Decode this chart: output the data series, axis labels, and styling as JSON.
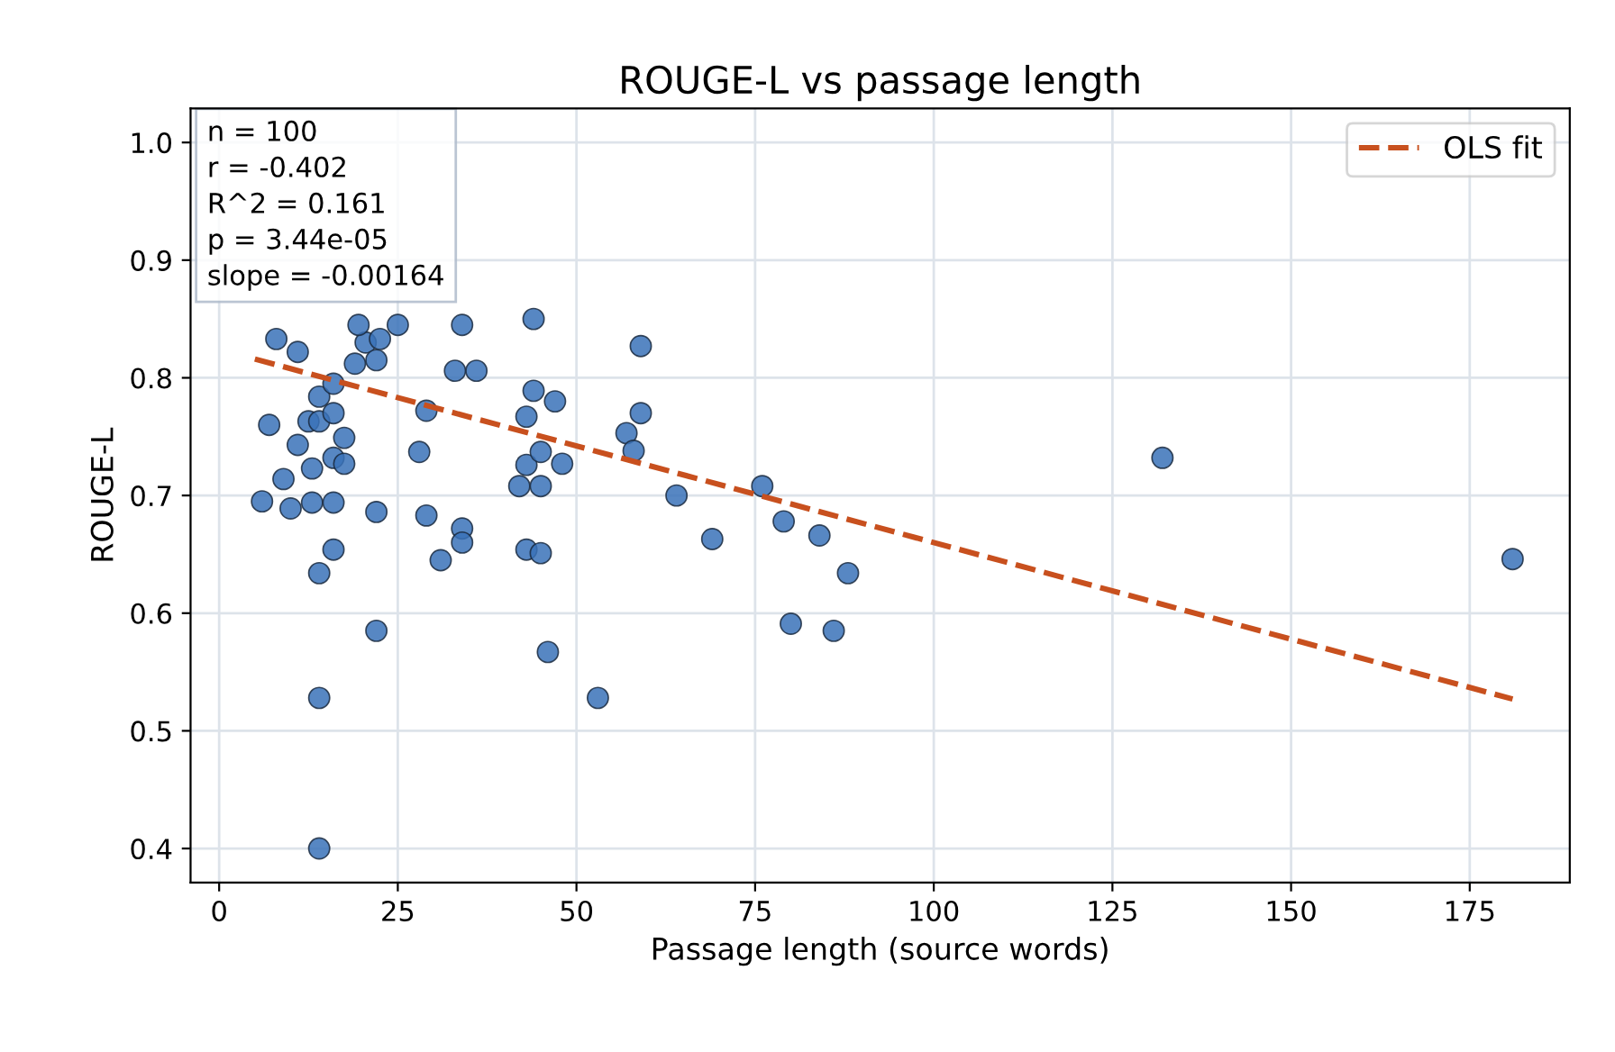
{
  "chart_data": {
    "type": "scatter",
    "title": "ROUGE-L vs passage length",
    "xlabel": "Passage length (source words)",
    "ylabel": "ROUGE-L",
    "annotations": [
      "n = 100\nr = -0.402\nR^2 = 0.161\np = 3.44e-05\nslope = -0.00164"
    ],
    "series": [
      {
        "color": "#3a72b8",
        "marker": "circle",
        "x": [
          6,
          7,
          9,
          10,
          8,
          11,
          11,
          12.5,
          13,
          13,
          14,
          14,
          14,
          14,
          14,
          16,
          16,
          16,
          16,
          17.5,
          17.5,
          16,
          19,
          20.5,
          22,
          22,
          22,
          19.5,
          22.5,
          25,
          28,
          29,
          29,
          31,
          33,
          34,
          34,
          34,
          36,
          42,
          43,
          43,
          43,
          44,
          44,
          45,
          45,
          45,
          46,
          47,
          48,
          53,
          57,
          58,
          59,
          59,
          64,
          69,
          76,
          79,
          80,
          84,
          86,
          88,
          132,
          181
        ],
        "values": [
          0.695,
          0.76,
          0.714,
          0.689,
          0.833,
          0.822,
          0.743,
          0.763,
          0.723,
          0.694,
          0.634,
          0.528,
          0.4,
          0.763,
          0.784,
          0.77,
          0.732,
          0.694,
          0.654,
          0.749,
          0.727,
          0.795,
          0.812,
          0.83,
          0.815,
          0.686,
          0.585,
          0.845,
          0.833,
          0.845,
          0.737,
          0.772,
          0.683,
          0.645,
          0.806,
          0.845,
          0.672,
          0.66,
          0.806,
          0.708,
          0.726,
          0.767,
          0.654,
          0.85,
          0.789,
          0.651,
          0.737,
          0.708,
          0.567,
          0.78,
          0.727,
          0.528,
          0.753,
          0.738,
          0.77,
          0.827,
          0.7,
          0.663,
          0.708,
          0.678,
          0.591,
          0.666,
          0.585,
          0.634,
          0.732,
          0.646
        ]
      },
      {
        "type": "line",
        "name": "OLS fit",
        "color": "#c8501e",
        "line_style": "dashed",
        "marker": "none",
        "x": [
          5,
          181
        ],
        "values": [
          0.816,
          0.527
        ]
      }
    ],
    "xlim": [
      -4,
      189
    ],
    "ylim": [
      0.371,
      1.029
    ],
    "xticks": [
      0,
      25,
      50,
      75,
      100,
      125,
      150,
      175
    ],
    "yticks": [
      0.4,
      0.5,
      0.6,
      0.7,
      0.8,
      0.9,
      {
        "value": 1.0,
        "label": "1.0"
      }
    ],
    "grid": true,
    "legend": "upper right"
  }
}
